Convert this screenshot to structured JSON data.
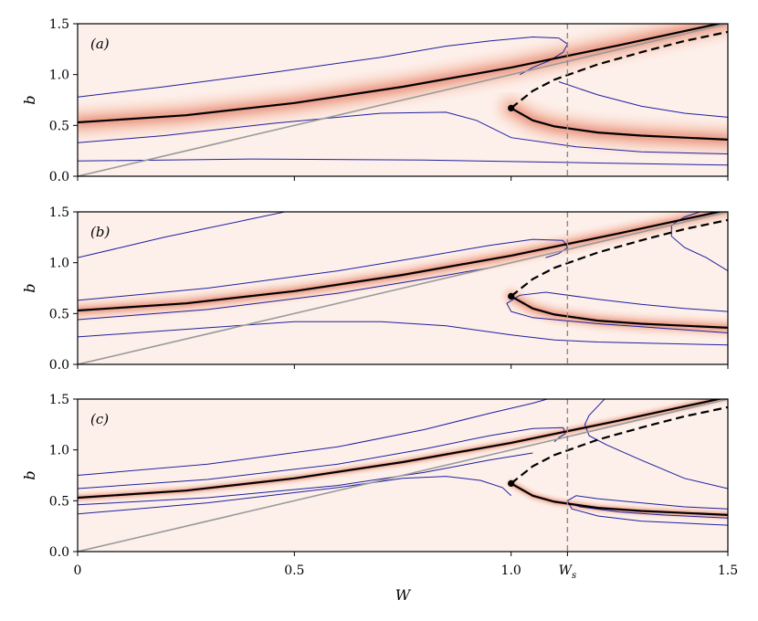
{
  "colors": {
    "band": "#fbe4da",
    "band_mid": "#f4b7a0",
    "band_core": "#d9452f",
    "contour": "#1f1f9e",
    "branch": "#000000",
    "diagonal": "#9a9a9a",
    "vline": "#8a8a8a"
  },
  "chart_data": [
    {
      "type": "line",
      "panel_label": "(a)",
      "xlabel": "",
      "ylabel": "b",
      "xlim": [
        0,
        1.5
      ],
      "ylim": [
        0,
        1.5
      ],
      "xticks": [],
      "yticks": [
        "0.0",
        "0.5",
        "1.0",
        "1.5"
      ],
      "band_sigma": 0.13,
      "series": [
        {
          "role": "stable-upper",
          "style": "solid",
          "x": [
            0,
            0.25,
            0.5,
            0.75,
            1.0,
            1.25,
            1.5
          ],
          "y": [
            0.53,
            0.6,
            0.72,
            0.88,
            1.07,
            1.29,
            1.52
          ]
        },
        {
          "role": "stable-lower",
          "style": "solid",
          "x": [
            1.0,
            1.05,
            1.1,
            1.2,
            1.3,
            1.4,
            1.5
          ],
          "y": [
            0.67,
            0.55,
            0.49,
            0.43,
            0.4,
            0.38,
            0.36
          ]
        },
        {
          "role": "unstable",
          "style": "dashed",
          "x": [
            1.0,
            1.05,
            1.1,
            1.2,
            1.3,
            1.4,
            1.5
          ],
          "y": [
            0.67,
            0.84,
            0.95,
            1.1,
            1.22,
            1.33,
            1.42
          ]
        },
        {
          "role": "diagonal",
          "style": "solid",
          "x": [
            0,
            1.5
          ],
          "y": [
            0,
            1.5
          ]
        }
      ],
      "fold_point": {
        "x": 1.0,
        "y": 0.67
      },
      "contours": [
        {
          "x": [
            0,
            0.2,
            0.45,
            0.7,
            0.85,
            0.95,
            1.05,
            1.11
          ],
          "y": [
            0.78,
            0.88,
            1.02,
            1.17,
            1.28,
            1.33,
            1.37,
            1.36
          ]
        },
        {
          "x": [
            1.11,
            1.13,
            1.12,
            1.09,
            1.05,
            1.02
          ],
          "y": [
            1.36,
            1.3,
            1.22,
            1.14,
            1.07,
            1.0
          ]
        },
        {
          "x": [
            0,
            0.2,
            0.45,
            0.7,
            0.85,
            0.92,
            1.0,
            1.15,
            1.3,
            1.5
          ],
          "y": [
            0.33,
            0.4,
            0.52,
            0.62,
            0.63,
            0.55,
            0.38,
            0.29,
            0.24,
            0.22
          ]
        },
        {
          "x": [
            0,
            0.4,
            0.8,
            1.2,
            1.5
          ],
          "y": [
            0.15,
            0.17,
            0.16,
            0.13,
            0.11
          ]
        },
        {
          "x": [
            1.11,
            1.2,
            1.3,
            1.4,
            1.5
          ],
          "y": [
            0.93,
            0.8,
            0.69,
            0.62,
            0.58
          ]
        }
      ]
    },
    {
      "type": "line",
      "panel_label": "(b)",
      "xlabel": "",
      "ylabel": "b",
      "xlim": [
        0,
        1.5
      ],
      "ylim": [
        0,
        1.5
      ],
      "xticks": [],
      "yticks": [
        "0.0",
        "0.5",
        "1.0",
        "1.5"
      ],
      "band_sigma": 0.075,
      "series": [
        {
          "role": "stable-upper",
          "style": "solid",
          "x": [
            0,
            0.25,
            0.5,
            0.75,
            1.0,
            1.25,
            1.5
          ],
          "y": [
            0.53,
            0.6,
            0.72,
            0.88,
            1.07,
            1.29,
            1.52
          ]
        },
        {
          "role": "stable-lower",
          "style": "solid",
          "x": [
            1.0,
            1.05,
            1.1,
            1.2,
            1.3,
            1.4,
            1.5
          ],
          "y": [
            0.67,
            0.55,
            0.49,
            0.43,
            0.4,
            0.38,
            0.36
          ]
        },
        {
          "role": "unstable",
          "style": "dashed",
          "x": [
            1.0,
            1.05,
            1.1,
            1.2,
            1.3,
            1.4,
            1.5
          ],
          "y": [
            0.67,
            0.84,
            0.95,
            1.1,
            1.22,
            1.33,
            1.42
          ]
        },
        {
          "role": "diagonal",
          "style": "solid",
          "x": [
            0,
            1.5
          ],
          "y": [
            0,
            1.5
          ]
        }
      ],
      "fold_point": {
        "x": 1.0,
        "y": 0.67
      },
      "contours": [
        {
          "x": [
            0,
            0.1,
            0.2,
            0.3,
            0.4,
            0.5
          ],
          "y": [
            1.05,
            1.15,
            1.25,
            1.34,
            1.43,
            1.52
          ]
        },
        {
          "x": [
            0,
            0.3,
            0.6,
            0.8,
            0.95,
            1.05,
            1.12
          ],
          "y": [
            0.63,
            0.75,
            0.92,
            1.06,
            1.17,
            1.23,
            1.22
          ]
        },
        {
          "x": [
            1.12,
            1.13,
            1.11,
            1.08
          ],
          "y": [
            1.22,
            1.15,
            1.09,
            1.05
          ]
        },
        {
          "x": [
            0,
            0.3,
            0.6,
            0.8,
            0.95
          ],
          "y": [
            0.44,
            0.54,
            0.7,
            0.84,
            0.95
          ]
        },
        {
          "x": [
            0,
            0.3,
            0.5,
            0.7,
            0.85,
            0.95,
            1.0,
            1.1,
            1.2,
            1.3,
            1.5
          ],
          "y": [
            0.27,
            0.36,
            0.42,
            0.42,
            0.38,
            0.32,
            0.29,
            0.24,
            0.22,
            0.21,
            0.19
          ]
        },
        {
          "x": [
            1.5,
            1.45,
            1.4,
            1.37,
            1.37,
            1.4,
            1.45
          ],
          "y": [
            0.92,
            1.05,
            1.15,
            1.26,
            1.37,
            1.45,
            1.52
          ]
        },
        {
          "x": [
            1.0,
            0.99,
            1.02,
            1.08,
            1.2,
            1.3,
            1.4,
            1.5
          ],
          "y": [
            0.52,
            0.6,
            0.68,
            0.71,
            0.64,
            0.59,
            0.55,
            0.52
          ]
        },
        {
          "x": [
            1.0,
            1.05,
            1.2,
            1.3,
            1.4,
            1.5
          ],
          "y": [
            0.52,
            0.46,
            0.4,
            0.37,
            0.34,
            0.31
          ]
        }
      ]
    },
    {
      "type": "line",
      "panel_label": "(c)",
      "xlabel": "W",
      "ylabel": "b",
      "xlim": [
        0,
        1.5
      ],
      "ylim": [
        0,
        1.5
      ],
      "xticks": [
        "0",
        "0.5",
        "1.0",
        "1.5"
      ],
      "extra_xtick": {
        "label": "W",
        "subscript": "s",
        "x": 1.13
      },
      "yticks": [
        "0.0",
        "0.5",
        "1.0",
        "1.5"
      ],
      "band_sigma": 0.04,
      "series": [
        {
          "role": "stable-upper",
          "style": "solid",
          "x": [
            0,
            0.25,
            0.5,
            0.75,
            1.0,
            1.25,
            1.5
          ],
          "y": [
            0.53,
            0.6,
            0.72,
            0.88,
            1.07,
            1.29,
            1.52
          ]
        },
        {
          "role": "stable-lower",
          "style": "solid",
          "x": [
            1.0,
            1.05,
            1.1,
            1.2,
            1.3,
            1.4,
            1.5
          ],
          "y": [
            0.67,
            0.55,
            0.49,
            0.43,
            0.4,
            0.38,
            0.36
          ]
        },
        {
          "role": "unstable",
          "style": "dashed",
          "x": [
            1.0,
            1.05,
            1.1,
            1.2,
            1.3,
            1.4,
            1.5
          ],
          "y": [
            0.67,
            0.84,
            0.95,
            1.1,
            1.22,
            1.33,
            1.42
          ]
        },
        {
          "role": "diagonal",
          "style": "solid",
          "x": [
            0,
            1.5
          ],
          "y": [
            0,
            1.5
          ]
        }
      ],
      "fold_point": {
        "x": 1.0,
        "y": 0.67
      },
      "contours": [
        {
          "x": [
            0,
            0.3,
            0.6,
            0.8,
            0.95,
            1.05,
            1.1
          ],
          "y": [
            0.75,
            0.86,
            1.03,
            1.2,
            1.36,
            1.46,
            1.52
          ]
        },
        {
          "x": [
            0,
            0.3,
            0.6,
            0.8,
            0.95,
            1.05,
            1.12
          ],
          "y": [
            0.62,
            0.71,
            0.86,
            1.01,
            1.14,
            1.21,
            1.22
          ]
        },
        {
          "x": [
            1.12,
            1.125,
            1.11,
            1.1
          ],
          "y": [
            1.22,
            1.16,
            1.12,
            1.08
          ]
        },
        {
          "x": [
            0,
            0.3,
            0.6,
            0.8,
            0.95,
            1.05
          ],
          "y": [
            0.46,
            0.53,
            0.65,
            0.78,
            0.9,
            0.97
          ]
        },
        {
          "x": [
            0,
            0.3,
            0.6,
            0.75,
            0.85,
            0.93,
            0.98,
            1.0
          ],
          "y": [
            0.37,
            0.48,
            0.63,
            0.72,
            0.74,
            0.7,
            0.63,
            0.55
          ]
        },
        {
          "x": [
            1.22,
            1.2,
            1.18,
            1.17,
            1.18,
            1.22,
            1.3,
            1.4,
            1.5
          ],
          "y": [
            1.52,
            1.43,
            1.34,
            1.25,
            1.14,
            1.05,
            0.9,
            0.72,
            0.62
          ]
        },
        {
          "x": [
            1.5,
            1.4,
            1.3,
            1.2,
            1.15,
            1.13,
            1.14,
            1.2,
            1.3,
            1.5
          ],
          "y": [
            0.42,
            0.44,
            0.48,
            0.52,
            0.55,
            0.5,
            0.42,
            0.35,
            0.3,
            0.26
          ]
        },
        {
          "x": [
            1.13,
            1.16,
            1.25,
            1.35,
            1.5
          ],
          "y": [
            0.48,
            0.44,
            0.39,
            0.36,
            0.33
          ]
        }
      ]
    }
  ],
  "vline": {
    "x": 1.13,
    "style": "dashed"
  }
}
